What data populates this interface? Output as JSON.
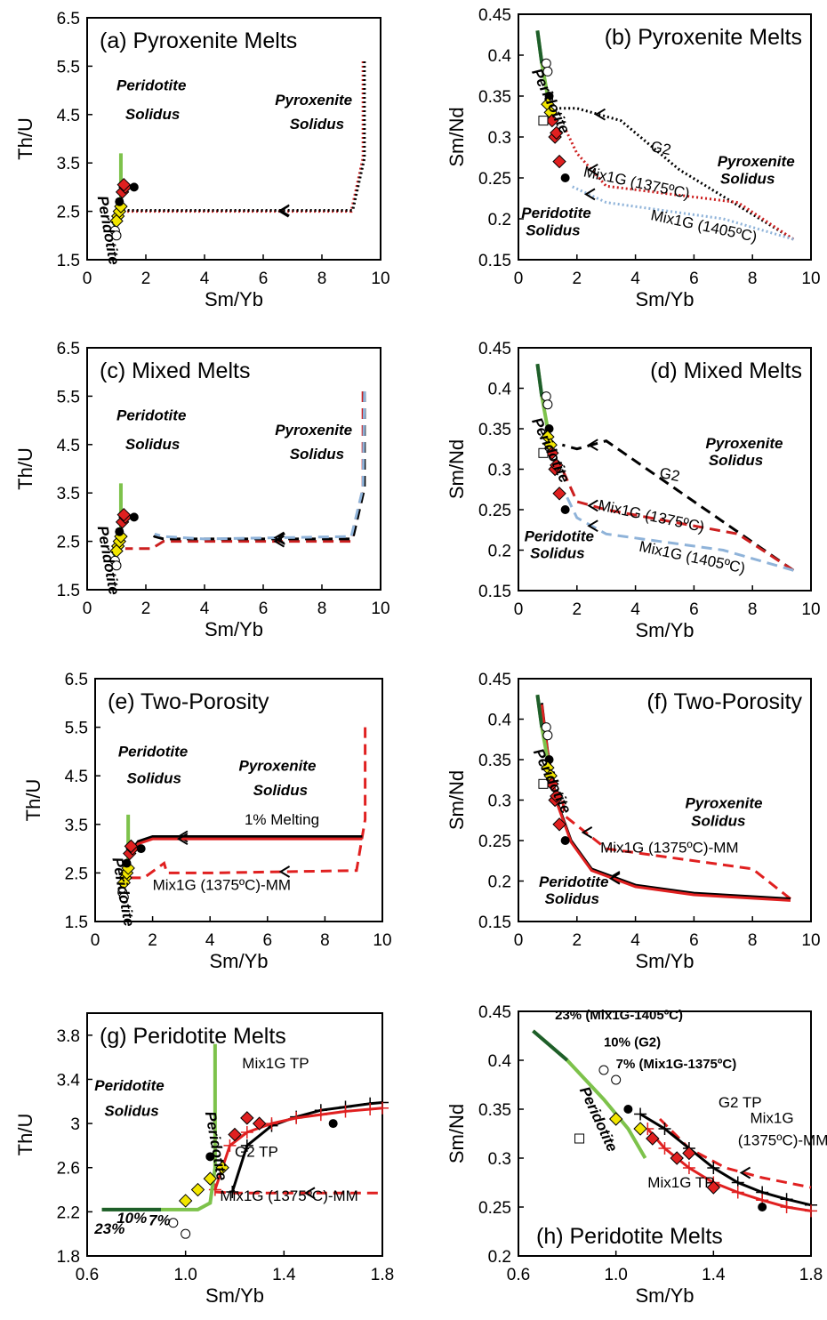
{
  "chart_data": [
    {
      "id": "a",
      "type": "line",
      "title": "(a) Pyroxenite Melts",
      "xlabel": "Sm/Yb",
      "ylabel": "Th/U",
      "xlim": [
        0,
        10
      ],
      "ylim": [
        1.5,
        6.5
      ],
      "xticks": [
        "0",
        "2",
        "4",
        "6",
        "8",
        "10"
      ],
      "yticks": [
        "1.5",
        "2.5",
        "3.5",
        "4.5",
        "5.5",
        "6.5"
      ],
      "annotations": [
        "Peridotite",
        "Solidus",
        "Pyroxenite",
        "Solidus",
        "Peridotite"
      ],
      "series": [
        {
          "style": "dotted",
          "color": "#cc1f1f",
          "x": [
            9.4,
            9.4,
            9.0,
            4.3,
            1.3,
            1.1
          ],
          "y": [
            5.6,
            3.6,
            2.5,
            2.5,
            2.5,
            2.5
          ]
        },
        {
          "style": "dotted",
          "color": "#000000",
          "x": [
            9.45,
            9.45,
            9.05,
            4.3,
            1.3,
            1.1
          ],
          "y": [
            5.6,
            3.6,
            2.52,
            2.52,
            2.52,
            2.52
          ]
        },
        {
          "style": "peridotite",
          "x": [
            0.9,
            1.0,
            1.1,
            1.15,
            1.15
          ],
          "y": [
            2.2,
            2.25,
            2.35,
            2.7,
            3.7
          ]
        }
      ]
    },
    {
      "id": "b",
      "type": "line",
      "title": "(b) Pyroxenite Melts",
      "xlabel": "Sm/Yb",
      "ylabel": "Sm/Nd",
      "xlim": [
        0,
        10
      ],
      "ylim": [
        0.15,
        0.45
      ],
      "xticks": [
        "0",
        "2",
        "4",
        "6",
        "8",
        "10"
      ],
      "yticks": [
        "0.15",
        "0.2",
        "0.25",
        "0.3",
        "0.35",
        "0.4",
        "0.45"
      ],
      "annotations": [
        "G2",
        "Mix1G (1375ºC)",
        "Mix1G (1405ºC)",
        "Pyroxenite",
        "Solidus",
        "Peridotite",
        "Solidus",
        "Peridotite"
      ],
      "series": [
        {
          "name": "G2",
          "style": "dotted",
          "color": "#000000",
          "x": [
            9.4,
            5.5,
            3.5,
            2.0,
            1.3
          ],
          "y": [
            0.175,
            0.26,
            0.32,
            0.335,
            0.335
          ]
        },
        {
          "name": "Mix1G (1375ºC)",
          "style": "dotted",
          "color": "#cc1f1f",
          "x": [
            9.4,
            7.5,
            3.0,
            2.0,
            1.6
          ],
          "y": [
            0.175,
            0.22,
            0.24,
            0.28,
            0.31
          ]
        },
        {
          "name": "Mix1G (1405ºC)",
          "style": "dotted",
          "color": "#8fb3d9",
          "x": [
            9.4,
            7.0,
            3.0,
            1.8
          ],
          "y": [
            0.175,
            0.2,
            0.22,
            0.24
          ]
        },
        {
          "style": "peridotite",
          "x": [
            0.65,
            0.8,
            0.95,
            1.1
          ],
          "y": [
            0.43,
            0.39,
            0.36,
            0.33
          ]
        }
      ]
    },
    {
      "id": "c",
      "type": "line",
      "title": "(c) Mixed Melts",
      "xlabel": "Sm/Yb",
      "ylabel": "Th/U",
      "xlim": [
        0,
        10
      ],
      "ylim": [
        1.5,
        6.5
      ],
      "xticks": [
        "0",
        "2",
        "4",
        "6",
        "8",
        "10"
      ],
      "yticks": [
        "1.5",
        "2.5",
        "3.5",
        "4.5",
        "5.5",
        "6.5"
      ],
      "annotations": [
        "Peridotite",
        "Solidus",
        "Pyroxenite",
        "Solidus",
        "Peridotite"
      ],
      "series": [
        {
          "style": "dashed",
          "color": "#cc1f1f",
          "x": [
            9.4,
            9.4,
            9.0,
            4.0,
            2.6,
            2.2,
            1.3
          ],
          "y": [
            5.6,
            3.6,
            2.5,
            2.5,
            2.5,
            2.35,
            2.35
          ]
        },
        {
          "style": "dashed",
          "color": "#000000",
          "x": [
            9.45,
            9.45,
            9.05,
            4.0,
            2.6,
            2.3,
            2.2
          ],
          "y": [
            5.6,
            3.6,
            2.55,
            2.55,
            2.55,
            2.6,
            2.65
          ]
        },
        {
          "style": "dashed",
          "color": "#8fb3d9",
          "x": [
            9.45,
            9.4,
            9.0,
            4.0,
            2.6,
            2.3
          ],
          "y": [
            5.6,
            3.6,
            2.6,
            2.55,
            2.6,
            2.65
          ]
        },
        {
          "style": "peridotite",
          "x": [
            0.9,
            1.0,
            1.1,
            1.15,
            1.15
          ],
          "y": [
            2.2,
            2.25,
            2.35,
            2.7,
            3.7
          ]
        }
      ]
    },
    {
      "id": "d",
      "type": "line",
      "title": "(d) Mixed Melts",
      "xlabel": "Sm/Yb",
      "ylabel": "Sm/Nd",
      "xlim": [
        0,
        10
      ],
      "ylim": [
        0.15,
        0.45
      ],
      "xticks": [
        "0",
        "2",
        "4",
        "6",
        "8",
        "10"
      ],
      "yticks": [
        "0.15",
        "0.2",
        "0.25",
        "0.3",
        "0.35",
        "0.4",
        "0.45"
      ],
      "annotations": [
        "G2",
        "Mix1G (1375ºC)",
        "Mix1G (1405ºC)",
        "Pyroxenite",
        "Solidus",
        "Peridotite",
        "Solidus",
        "Peridotite"
      ],
      "series": [
        {
          "name": "G2",
          "style": "dashed",
          "color": "#000000",
          "x": [
            9.4,
            6.0,
            3.0,
            2.0,
            1.5
          ],
          "y": [
            0.175,
            0.26,
            0.335,
            0.325,
            0.33
          ]
        },
        {
          "name": "Mix1G (1375ºC)",
          "style": "dashed",
          "color": "#cc1f1f",
          "x": [
            9.4,
            7.5,
            3.0,
            2.0,
            1.5
          ],
          "y": [
            0.175,
            0.22,
            0.25,
            0.26,
            0.3
          ]
        },
        {
          "name": "Mix1G (1405ºC)",
          "style": "dashed",
          "color": "#8fb3d9",
          "x": [
            9.4,
            7.0,
            3.0,
            2.0,
            1.6
          ],
          "y": [
            0.175,
            0.2,
            0.22,
            0.24,
            0.27
          ]
        },
        {
          "style": "peridotite",
          "x": [
            0.65,
            0.8,
            0.95,
            1.1
          ],
          "y": [
            0.43,
            0.39,
            0.36,
            0.33
          ]
        }
      ]
    },
    {
      "id": "e",
      "type": "line",
      "title": "(e) Two-Porosity",
      "xlabel": "Sm/Yb",
      "ylabel": "Th/U",
      "xlim": [
        0,
        10
      ],
      "ylim": [
        1.5,
        6.5
      ],
      "xticks": [
        "0",
        "2",
        "4",
        "6",
        "8",
        "10"
      ],
      "yticks": [
        "1.5",
        "2.5",
        "3.5",
        "4.5",
        "5.5",
        "6.5"
      ],
      "annotations": [
        "Peridotite",
        "Solidus",
        "Pyroxenite",
        "Solidus",
        "1% Melting",
        "Mix1G (1375ºC)-MM",
        "Peridotite"
      ],
      "series": [
        {
          "name": "Mix1G (1375ºC)-MM",
          "style": "dashed",
          "color": "#e02020",
          "x": [
            9.4,
            9.4,
            9.1,
            4.0,
            2.5,
            2.4,
            1.7,
            1.2
          ],
          "y": [
            5.5,
            3.6,
            2.55,
            2.5,
            2.5,
            2.7,
            2.4,
            2.4
          ]
        },
        {
          "name": "1% Melting",
          "style": "solid",
          "color": "#000000",
          "x": [
            9.3,
            6.0,
            4.0,
            2.0,
            1.5,
            1.2
          ],
          "y": [
            3.25,
            3.25,
            3.25,
            3.25,
            3.15,
            2.9
          ]
        },
        {
          "style": "solid",
          "color": "#e02020",
          "x": [
            9.3,
            6.0,
            4.0,
            2.0,
            1.5,
            1.2
          ],
          "y": [
            3.2,
            3.2,
            3.2,
            3.2,
            3.1,
            2.85
          ]
        },
        {
          "style": "peridotite",
          "x": [
            0.9,
            1.0,
            1.1,
            1.15,
            1.15
          ],
          "y": [
            2.2,
            2.25,
            2.35,
            2.7,
            3.7
          ]
        }
      ]
    },
    {
      "id": "f",
      "type": "line",
      "title": "(f) Two-Porosity",
      "xlabel": "Sm/Yb",
      "ylabel": "Sm/Nd",
      "xlim": [
        0,
        10
      ],
      "ylim": [
        0.15,
        0.45
      ],
      "xticks": [
        "0",
        "2",
        "4",
        "6",
        "8",
        "10"
      ],
      "yticks": [
        "0.15",
        "0.2",
        "0.25",
        "0.3",
        "0.35",
        "0.4",
        "0.45"
      ],
      "annotations": [
        "Pyroxenite",
        "Solidus",
        "Mix1G (1375ºC)-MM",
        "Peridotite",
        "Solidus",
        "Peridotite"
      ],
      "series": [
        {
          "name": "Mix1G (1375ºC)-MM",
          "style": "dashed",
          "color": "#e02020",
          "x": [
            9.3,
            8.0,
            3.0,
            1.6,
            1.5
          ],
          "y": [
            0.178,
            0.215,
            0.24,
            0.28,
            0.3
          ]
        },
        {
          "style": "solid",
          "color": "#000000",
          "x": [
            9.3,
            6.0,
            4.0,
            2.5,
            1.8,
            1.3,
            1.0,
            0.8
          ],
          "y": [
            0.178,
            0.185,
            0.195,
            0.215,
            0.25,
            0.3,
            0.36,
            0.42
          ]
        },
        {
          "style": "solid",
          "color": "#e02020",
          "x": [
            9.3,
            6.0,
            4.0,
            2.5,
            1.8,
            1.3,
            1.0,
            0.8
          ],
          "y": [
            0.176,
            0.183,
            0.193,
            0.213,
            0.248,
            0.298,
            0.358,
            0.418
          ]
        },
        {
          "style": "peridotite",
          "x": [
            0.65,
            0.8,
            0.95,
            1.1
          ],
          "y": [
            0.43,
            0.39,
            0.36,
            0.33
          ]
        }
      ]
    },
    {
      "id": "g",
      "type": "line",
      "title": "(g) Peridotite Melts",
      "xlabel": "Sm/Yb",
      "ylabel": "Th/U",
      "xlim": [
        0.6,
        1.8
      ],
      "ylim": [
        1.8,
        4.0
      ],
      "xticks": [
        "0.6",
        "1.0",
        "1.4",
        "1.8"
      ],
      "yticks": [
        "1.8",
        "2.2",
        "2.6",
        "3",
        "3.4",
        "3.8"
      ],
      "annotations": [
        "Peridotite",
        "Solidus",
        "Peridotite",
        "Mix1G TP",
        "G2 TP",
        "Mix1G (1375ºC)-MM",
        "23%",
        "10%",
        "7%"
      ],
      "series": [
        {
          "name": "Mix1G (1375ºC)-MM",
          "style": "dashed",
          "color": "#e02020",
          "x": [
            1.12,
            1.2,
            1.4,
            1.6,
            1.8
          ],
          "y": [
            2.38,
            2.37,
            2.37,
            2.37,
            2.37
          ]
        },
        {
          "name": "G2 TP",
          "style": "cross",
          "color": "#000000",
          "x": [
            1.19,
            1.25,
            1.35,
            1.45,
            1.55,
            1.65,
            1.75,
            1.8
          ],
          "y": [
            2.38,
            2.8,
            2.98,
            3.06,
            3.12,
            3.15,
            3.18,
            3.19
          ]
        },
        {
          "name": "Mix1G TP",
          "style": "cross",
          "color": "#e02020",
          "x": [
            1.12,
            1.18,
            1.25,
            1.35,
            1.45,
            1.55,
            1.65,
            1.75,
            1.8
          ],
          "y": [
            2.4,
            2.8,
            2.92,
            3.0,
            3.05,
            3.08,
            3.11,
            3.13,
            3.14
          ]
        },
        {
          "style": "peridotite",
          "x": [
            0.66,
            0.9,
            1.05,
            1.1,
            1.12,
            1.12
          ],
          "y": [
            2.22,
            2.22,
            2.22,
            2.28,
            2.6,
            3.72
          ]
        }
      ]
    },
    {
      "id": "h",
      "type": "line",
      "title": "(h) Peridotite Melts",
      "xlabel": "Sm/Yb",
      "ylabel": "Sm/Nd",
      "xlim": [
        0.6,
        1.8
      ],
      "ylim": [
        0.2,
        0.45
      ],
      "xticks": [
        "0.6",
        "1.0",
        "1.4",
        "1.8"
      ],
      "yticks": [
        "0.2",
        "0.25",
        "0.3",
        "0.35",
        "0.4",
        "0.45"
      ],
      "annotations": [
        "23% (Mix1G-1405ºC)",
        "10% (G2)",
        "7% (Mix1G-1375ºC)",
        "G2 TP",
        "Mix1G",
        "(1375ºC)-MM",
        "Mix1G TP",
        "Peridotite"
      ],
      "series": [
        {
          "name": "Mix1G (1375ºC)-MM",
          "style": "dashed",
          "color": "#e02020",
          "x": [
            1.18,
            1.3,
            1.45,
            1.6,
            1.8
          ],
          "y": [
            0.34,
            0.31,
            0.29,
            0.28,
            0.27
          ]
        },
        {
          "name": "G2 TP",
          "style": "cross",
          "color": "#000000",
          "x": [
            1.1,
            1.2,
            1.3,
            1.4,
            1.5,
            1.6,
            1.7,
            1.8
          ],
          "y": [
            0.345,
            0.33,
            0.31,
            0.29,
            0.275,
            0.265,
            0.258,
            0.252
          ]
        },
        {
          "name": "Mix1G TP",
          "style": "cross",
          "color": "#e02020",
          "x": [
            1.13,
            1.2,
            1.3,
            1.4,
            1.5,
            1.6,
            1.7,
            1.8
          ],
          "y": [
            0.33,
            0.31,
            0.29,
            0.275,
            0.265,
            0.257,
            0.25,
            0.246
          ]
        },
        {
          "style": "peridotite",
          "x": [
            0.66,
            0.8,
            0.95,
            1.05,
            1.12
          ],
          "y": [
            0.43,
            0.4,
            0.36,
            0.33,
            0.3
          ]
        }
      ]
    }
  ]
}
